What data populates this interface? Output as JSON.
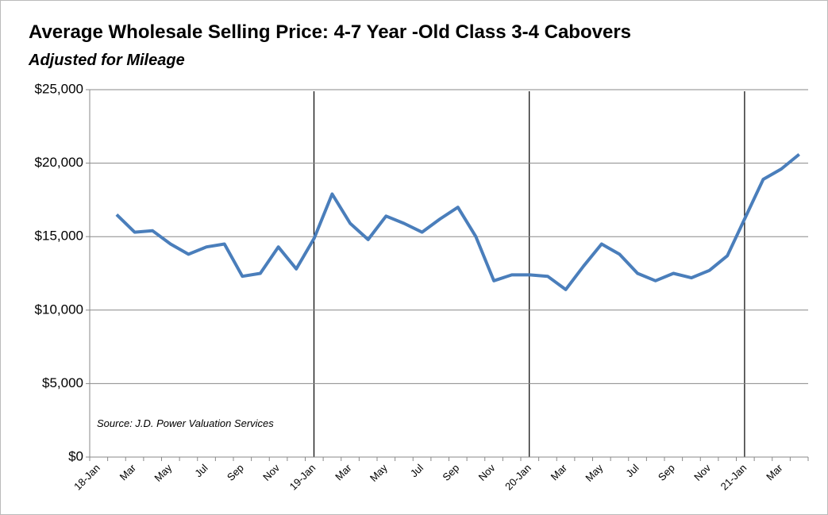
{
  "chart_data": {
    "type": "line",
    "title": "Average Wholesale Selling Price: 4-7 Year -Old Class 3-4 Cabovers",
    "subtitle": "Adjusted for Mileage",
    "annotation": "Source: J.D. Power Valuation Services",
    "categories": [
      "18-Jan",
      null,
      "Mar",
      null,
      "May",
      null,
      "Jul",
      null,
      "Sep",
      null,
      "Nov",
      null,
      "19-Jan",
      null,
      "Mar",
      null,
      "May",
      null,
      "Jul",
      null,
      "Sep",
      null,
      "Nov",
      null,
      "20-Jan",
      null,
      "Mar",
      null,
      "May",
      null,
      "Jul",
      null,
      "Sep",
      null,
      "Nov",
      null,
      "21-Jan",
      null,
      "Mar",
      null
    ],
    "series": [
      {
        "name": "Average Wholesale Selling Price",
        "color": "#4a7ebb",
        "values": [
          null,
          16500,
          15300,
          15400,
          14500,
          13800,
          14300,
          14500,
          12300,
          12500,
          14300,
          12800,
          14900,
          17900,
          15900,
          14800,
          16400,
          15900,
          15300,
          16200,
          17000,
          15000,
          12000,
          12400,
          12400,
          12300,
          11400,
          13000,
          14500,
          13800,
          12500,
          12000,
          12500,
          12200,
          12700,
          13700,
          16300,
          18900,
          19600,
          20600
        ]
      }
    ],
    "ylim": [
      0,
      25000
    ],
    "yticks": [
      {
        "value": 0,
        "label": "$0"
      },
      {
        "value": 5000,
        "label": "$5,000"
      },
      {
        "value": 10000,
        "label": "$10,000"
      },
      {
        "value": 15000,
        "label": "$15,000"
      },
      {
        "value": 20000,
        "label": "$20,000"
      },
      {
        "value": 25000,
        "label": "$25,000"
      }
    ],
    "grid": true
  }
}
